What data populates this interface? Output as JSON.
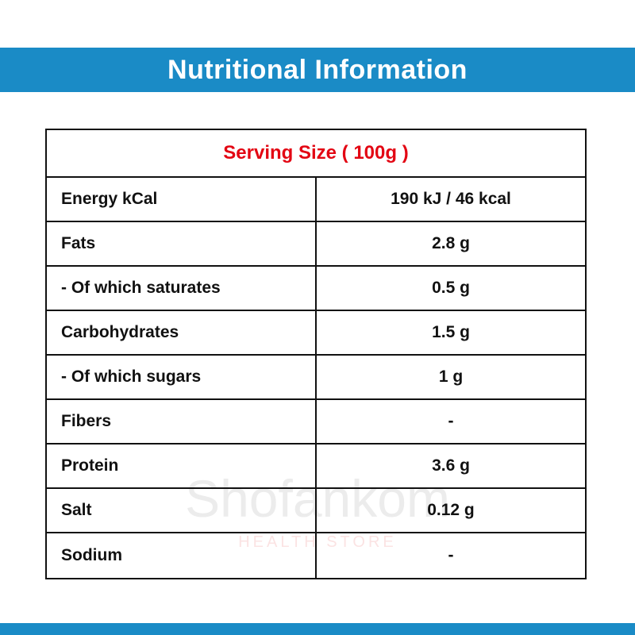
{
  "header": {
    "title": "Nutritional Information"
  },
  "table": {
    "serving": "Serving Size ( 100g )",
    "rows": [
      [
        "Energy kCal",
        "190 kJ / 46 kcal"
      ],
      [
        "Fats",
        "2.8 g"
      ],
      [
        "- Of which saturates",
        "0.5 g"
      ],
      [
        "Carbohydrates",
        "1.5 g"
      ],
      [
        "- Of which sugars",
        "1 g"
      ],
      [
        "Fibers",
        "-"
      ],
      [
        "Protein",
        "3.6 g"
      ],
      [
        "Salt",
        "0.12 g"
      ],
      [
        "Sodium",
        "-"
      ]
    ]
  },
  "watermark": {
    "brand": "Shofankom",
    "tagline": "HEALTH STORE"
  }
}
